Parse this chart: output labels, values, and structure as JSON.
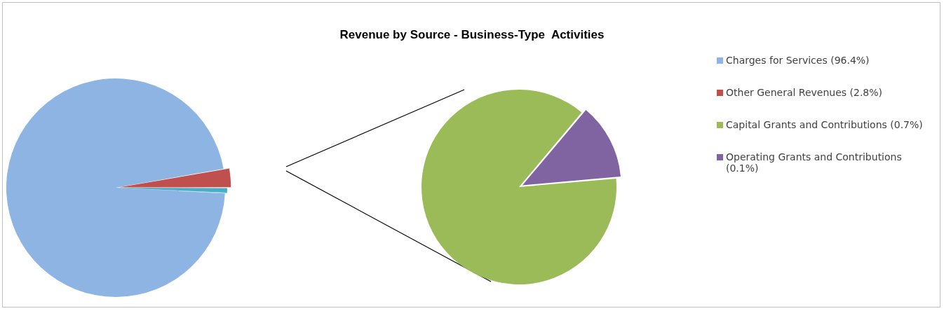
{
  "chart_data": [
    {
      "type": "pie",
      "categories": [
        "Charges for Services (96.4%)",
        "Other General Revenues (2.8%)",
        null,
        null
      ],
      "values": [
        96.4,
        2.8,
        0.7,
        0.1
      ],
      "colors": [
        "#8db4e2",
        "#c0504d",
        "#4bacc6",
        "#4bacc6"
      ],
      "legend": "right"
    },
    {
      "type": "pie",
      "title": "Revenue by Source - Business-Type  Activities",
      "categories": [
        "Capital Grants and Contributions (0.7%)",
        "Operating Grants and Contributions (0.1%)"
      ],
      "values": [
        0.7,
        0.1
      ],
      "colors": [
        "#9bbb59",
        "#8064a2"
      ],
      "legend": "right"
    }
  ]
}
